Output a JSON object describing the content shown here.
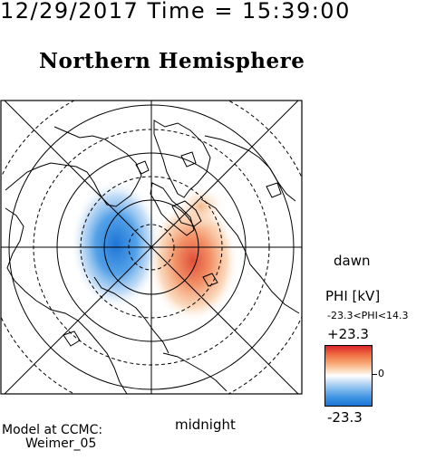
{
  "header": {
    "datetime": "12/29/2017 Time = 15:39:00",
    "title": "Northern Hemisphere"
  },
  "map": {
    "hemisphere": "north",
    "projection": "polar",
    "grid": "on",
    "labels": {
      "right": "dawn",
      "bottom": "midnight"
    },
    "colors": {
      "positive": "#d9262a",
      "negative": "#1e75d6",
      "grid": "#000000"
    }
  },
  "legend": {
    "title": "PHI [kV]",
    "range_text": "-23.3<PHI<14.3",
    "max_label": "+23.3",
    "min_label": "-23.3",
    "zero_label": "0"
  },
  "credit": {
    "line1": "Model at CCMC:",
    "line2": "Weimer_05"
  }
}
